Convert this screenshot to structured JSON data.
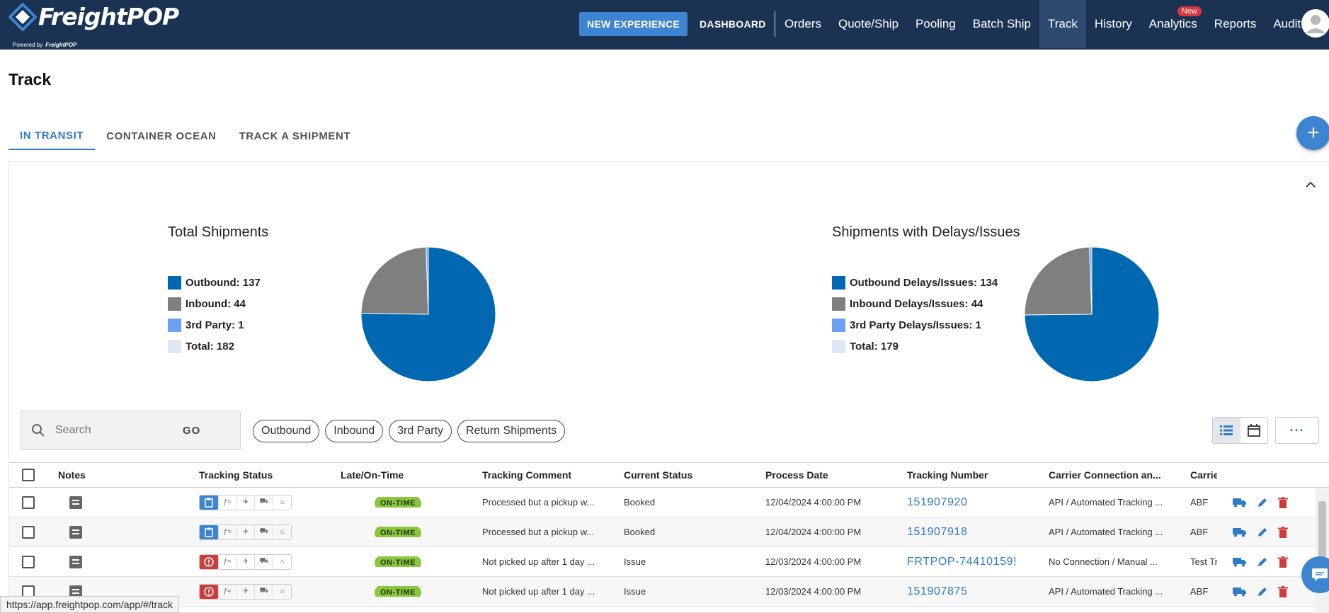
{
  "app": {
    "logo_text": "FreightPOP",
    "powered_by_prefix": "Powered by",
    "powered_by_brand": "FreightPOP"
  },
  "header": {
    "new_experience_label": "NEW EXPERIENCE",
    "dashboard_label": "DASHBOARD",
    "nav": [
      {
        "label": "Orders"
      },
      {
        "label": "Quote/Ship"
      },
      {
        "label": "Pooling"
      },
      {
        "label": "Batch Ship"
      },
      {
        "label": "Track",
        "active": true
      },
      {
        "label": "History"
      },
      {
        "label": "Analytics",
        "badge": "New"
      },
      {
        "label": "Reports"
      },
      {
        "label": "Audit"
      }
    ]
  },
  "page": {
    "title": "Track"
  },
  "tabs": [
    {
      "label": "IN TRANSIT",
      "active": true
    },
    {
      "label": "CONTAINER OCEAN"
    },
    {
      "label": "TRACK A SHIPMENT"
    }
  ],
  "fab_label": "+",
  "charts": {
    "colors": {
      "outbound": "#0067b1",
      "inbound": "#7f7f7f",
      "third_party": "#6ea0f5",
      "total": "#dfe9f6"
    },
    "total_shipments": {
      "title": "Total Shipments",
      "legend": [
        "Outbound: 137",
        "Inbound: 44",
        "3rd Party: 1",
        "Total: 182"
      ]
    },
    "delays": {
      "title": "Shipments with Delays/Issues",
      "legend": [
        "Outbound Delays/Issues: 134",
        "Inbound Delays/Issues: 44",
        "3rd Party Delays/Issues: 1",
        "Total: 179"
      ]
    }
  },
  "chart_data": [
    {
      "type": "pie",
      "title": "Total Shipments",
      "categories": [
        "Outbound",
        "Inbound",
        "3rd Party"
      ],
      "values": [
        137,
        44,
        1
      ]
    },
    {
      "type": "pie",
      "title": "Shipments with Delays/Issues",
      "categories": [
        "Outbound Delays/Issues",
        "Inbound Delays/Issues",
        "3rd Party Delays/Issues"
      ],
      "values": [
        134,
        44,
        1
      ]
    }
  ],
  "search": {
    "placeholder": "Search",
    "go_label": "GO"
  },
  "filters": [
    "Outbound",
    "Inbound",
    "3rd Party",
    "Return Shipments"
  ],
  "more_label": "···",
  "table": {
    "columns": [
      "Notes",
      "Tracking Status",
      "Late/On-Time",
      "Tracking Comment",
      "Current Status",
      "Process Date",
      "Tracking Number",
      "Carrier Connection an...",
      "Carrie"
    ],
    "rows": [
      {
        "status_icon": "clipboard",
        "late": "ON-TIME",
        "comment": "Processed but a pickup w...",
        "current": "Booked",
        "date": "12/04/2024 4:00:00 PM",
        "tracking": "151907920",
        "connection": "API / Automated Tracking ...",
        "carrier": "ABF"
      },
      {
        "status_icon": "clipboard",
        "late": "ON-TIME",
        "comment": "Processed but a pickup w...",
        "current": "Booked",
        "date": "12/04/2024 4:00:00 PM",
        "tracking": "151907918",
        "connection": "API / Automated Tracking ...",
        "carrier": "ABF"
      },
      {
        "status_icon": "alert",
        "late": "ON-TIME",
        "comment": "Not picked up after 1 day ...",
        "current": "Issue",
        "date": "12/03/2024 4:00:00 PM",
        "tracking": "FRTPOP-74410159!",
        "connection": "No Connection / Manual ...",
        "carrier": "Test Tr"
      },
      {
        "status_icon": "alert",
        "late": "ON-TIME",
        "comment": "Not picked up after 1 day ...",
        "current": "Issue",
        "date": "12/03/2024 4:00:00 PM",
        "tracking": "151907875",
        "connection": "API / Automated Tracking ...",
        "carrier": "ABF"
      }
    ]
  },
  "status_bar_url": "https://app.freightpop.com/app/#/track"
}
